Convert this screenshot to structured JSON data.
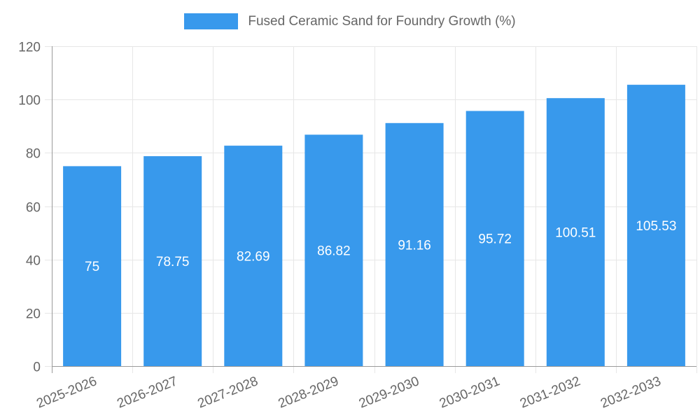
{
  "chart_data": {
    "type": "bar",
    "title": "Fused Ceramic Sand for Foundry Growth (%)",
    "categories": [
      "2025-2026",
      "2026-2027",
      "2027-2028",
      "2028-2029",
      "2029-2030",
      "2030-2031",
      "2031-2032",
      "2032-2033"
    ],
    "values": [
      75,
      78.75,
      82.69,
      86.82,
      91.16,
      95.72,
      100.51,
      105.53
    ],
    "xlabel": "",
    "ylabel": "",
    "ylim": [
      0,
      120
    ],
    "yticks": [
      0,
      20,
      40,
      60,
      80,
      100,
      120
    ],
    "grid": true,
    "legend_position": "top",
    "bar_color": "#3899ec",
    "bar_label_color": "#ffffff"
  },
  "colors": {
    "grid": "#e7e7e7",
    "axis": "#9a9a9a",
    "tick_text": "#666666",
    "legend_text": "#666666",
    "background": "#ffffff"
  }
}
